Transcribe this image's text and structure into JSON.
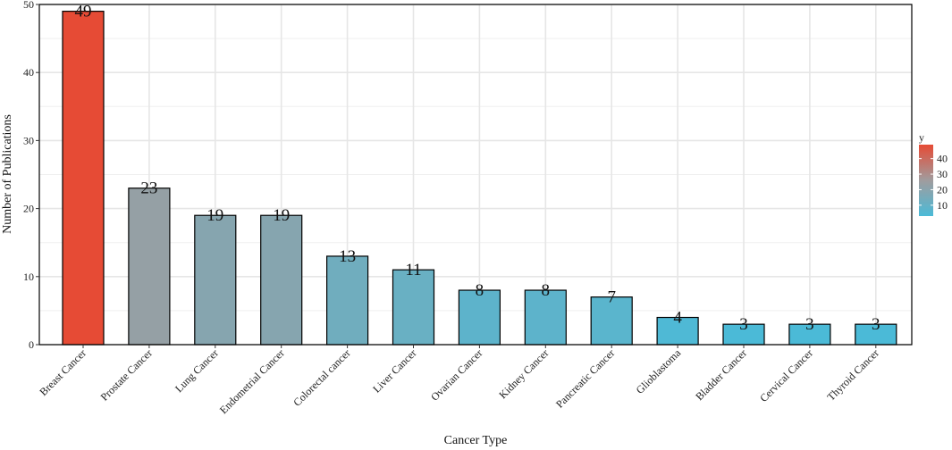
{
  "chart_data": {
    "type": "bar",
    "title": "",
    "xlabel": "Cancer Type",
    "ylabel": "Number of Publications",
    "categories": [
      "Breast Cancer",
      "Prostate Cancer",
      "Lung Cancer",
      "Endometrial Cancer",
      "Colorectal cancer",
      "Liver Cancer",
      "Ovarian Cancer",
      "Kidney Cancer",
      "Pancreatic Cancer",
      "Glioblastoma",
      "Bladder Cancer",
      "Cervical Cancer",
      "Thyroid Cancer"
    ],
    "values": [
      49,
      23,
      19,
      19,
      13,
      11,
      8,
      8,
      7,
      4,
      3,
      3,
      3
    ],
    "data_labels": [
      "49",
      "23",
      "19",
      "19",
      "13",
      "11",
      "8",
      "8",
      "7",
      "4",
      "3",
      "3",
      "3"
    ],
    "ylim": [
      0,
      50
    ],
    "yticks": [
      0,
      10,
      20,
      30,
      40,
      50
    ],
    "ytick_labels": [
      "0",
      "10",
      "20",
      "30",
      "40",
      "50"
    ],
    "grid": true,
    "legend": {
      "title": "y",
      "placement": "right",
      "breaks": [
        10,
        20,
        30,
        40
      ],
      "break_labels": [
        "10",
        "20",
        "30",
        "40"
      ],
      "range": [
        3,
        49
      ]
    },
    "color_scale": {
      "low": "#4BBAD7",
      "mid": "#A09C9E",
      "high": "#E64B35"
    }
  }
}
